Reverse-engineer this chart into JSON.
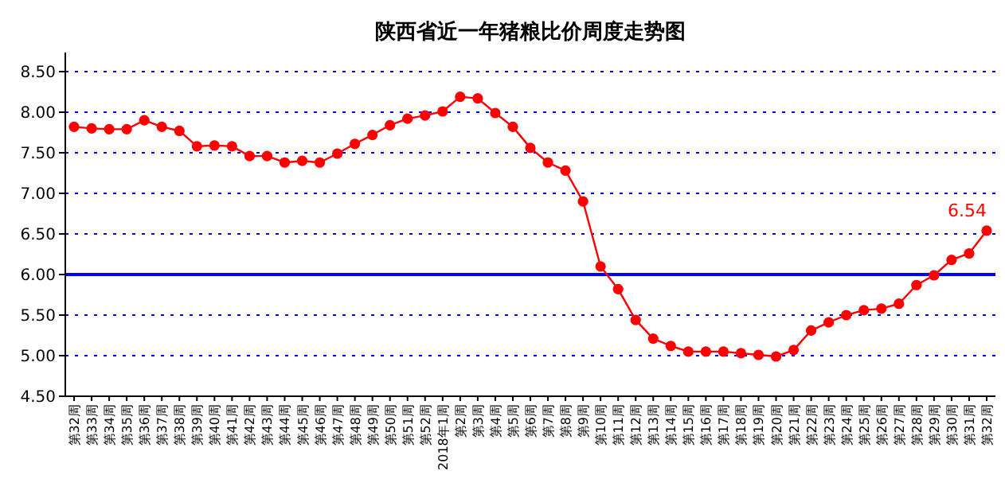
{
  "chart_data": {
    "type": "line",
    "title": "陕西省近一年猪粮比价周度走势图",
    "categories": [
      "第32周",
      "第33周",
      "第34周",
      "第35周",
      "第36周",
      "第37周",
      "第38周",
      "第39周",
      "第40周",
      "第41周",
      "第42周",
      "第43周",
      "第44周",
      "第45周",
      "第46周",
      "第47周",
      "第48周",
      "第49周",
      "第50周",
      "第51周",
      "第52周",
      "2018年1周",
      "第2周",
      "第3周",
      "第4周",
      "第5周",
      "第6周",
      "第7周",
      "第8周",
      "第9周",
      "第10周",
      "第11周",
      "第12周",
      "第13周",
      "第14周",
      "第15周",
      "第16周",
      "第17周",
      "第18周",
      "第19周",
      "第20周",
      "第21周",
      "第22周",
      "第23周",
      "第24周",
      "第25周",
      "第26周",
      "第27周",
      "第28周",
      "第29周",
      "第30周",
      "第31周",
      "第32周"
    ],
    "series": [
      {
        "color": "#ff0000",
        "values": [
          7.82,
          7.8,
          7.79,
          7.79,
          7.9,
          7.82,
          7.77,
          7.58,
          7.59,
          7.58,
          7.46,
          7.46,
          7.38,
          7.4,
          7.38,
          7.49,
          7.61,
          7.72,
          7.84,
          7.92,
          7.96,
          8.01,
          8.19,
          8.17,
          7.99,
          7.82,
          7.56,
          7.38,
          7.28,
          6.9,
          6.1,
          5.82,
          5.44,
          5.21,
          5.12,
          5.05,
          5.05,
          5.05,
          5.03,
          5.01,
          4.99,
          5.07,
          5.31,
          5.41,
          5.5,
          5.56,
          5.58,
          5.64,
          5.87,
          5.99,
          6.18,
          6.26,
          6.54
        ],
        "value_labels": [
          null,
          null,
          null,
          null,
          null,
          null,
          null,
          null,
          null,
          null,
          null,
          null,
          null,
          null,
          null,
          null,
          null,
          null,
          null,
          null,
          null,
          null,
          null,
          null,
          null,
          null,
          null,
          null,
          null,
          null,
          null,
          null,
          null,
          null,
          null,
          null,
          null,
          null,
          null,
          null,
          null,
          null,
          null,
          null,
          null,
          null,
          null,
          null,
          null,
          null,
          null,
          null,
          "6.54"
        ]
      }
    ],
    "ylim": [
      4.5,
      8.5
    ],
    "yticks": [
      {
        "value": 4.5,
        "label": "4.50"
      },
      {
        "value": 5,
        "label": "5.00"
      },
      {
        "value": 5.5,
        "label": "5.50"
      },
      {
        "value": 6,
        "label": "6.00"
      },
      {
        "value": 6.5,
        "label": "6.50"
      },
      {
        "value": 7,
        "label": "7.00"
      },
      {
        "value": 7.5,
        "label": "7.50"
      },
      {
        "value": 8,
        "label": "8.00"
      },
      {
        "value": 8.5,
        "label": "8.50"
      }
    ],
    "grid": "y",
    "marker": "circle",
    "line_style": "solid",
    "ref_lines": [
      {
        "axis": "y",
        "value": 6,
        "color": "#0000ff",
        "line_style": "solid"
      }
    ]
  }
}
